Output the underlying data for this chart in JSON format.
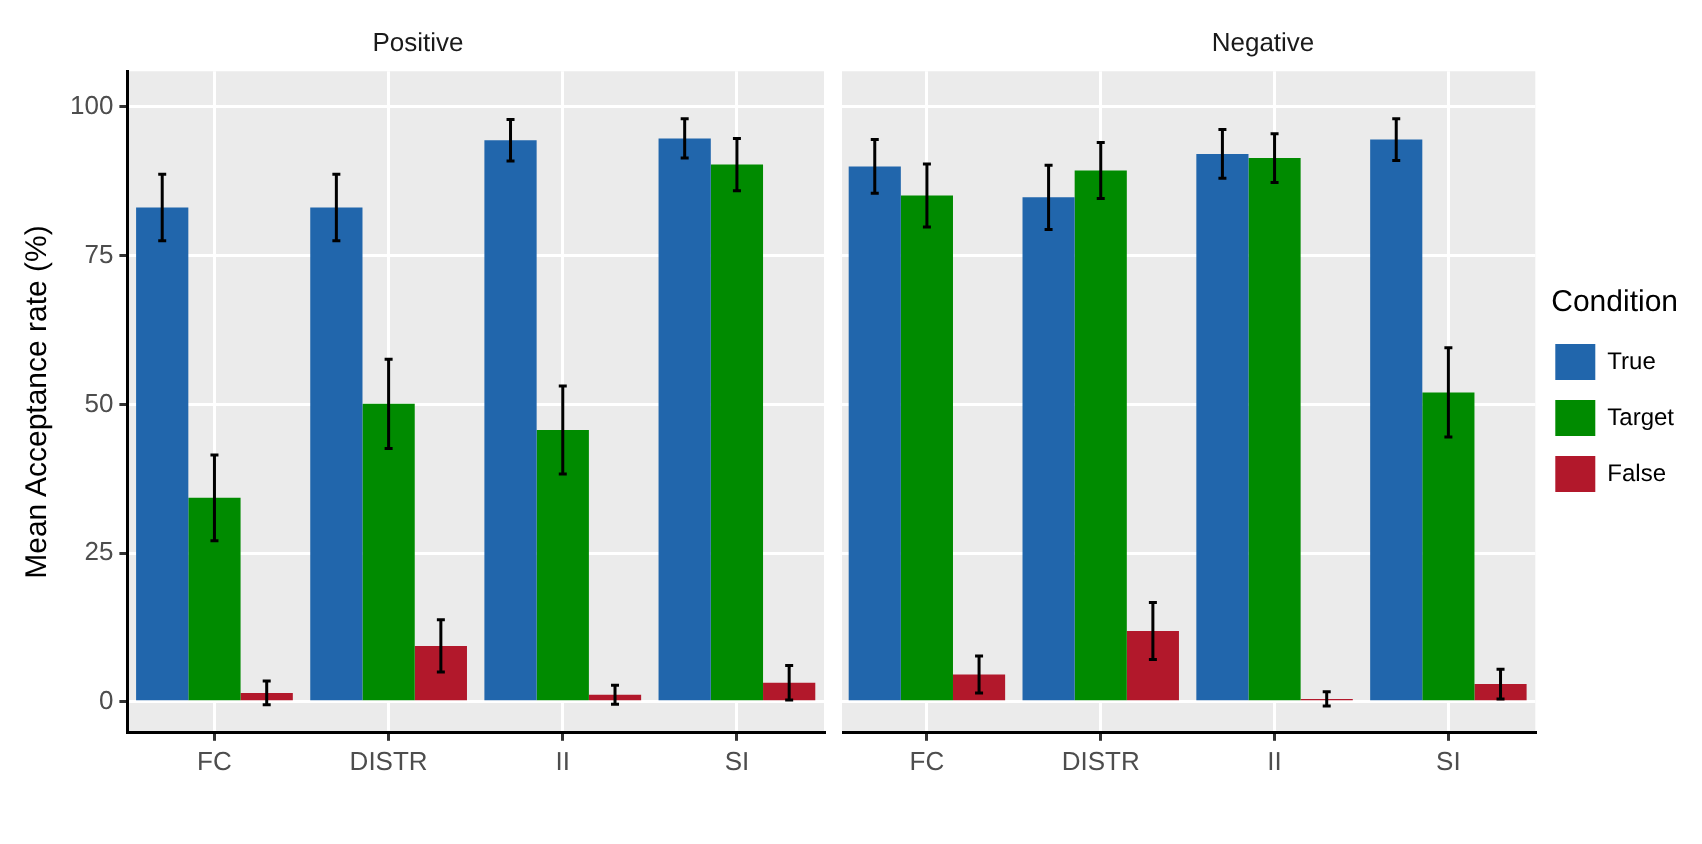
{
  "chart_data": [
    {
      "type": "bar",
      "title": "Positive",
      "ylabel": "Mean Acceptance rate (%)",
      "categories": [
        "FC",
        "DISTR",
        "II",
        "SI"
      ],
      "series": [
        {
          "color": "#2166ac",
          "values": [
            83.1,
            83.1,
            94.4,
            94.7
          ],
          "errors": [
            5.6,
            5.6,
            3.5,
            3.3
          ]
        },
        {
          "color": "#008b00",
          "values": [
            34.3,
            50.1,
            45.7,
            90.3
          ],
          "errors": [
            7.2,
            7.5,
            7.4,
            4.4
          ]
        },
        {
          "color": "#b2182b",
          "values": [
            1.5,
            9.4,
            1.2,
            3.2
          ],
          "errors": [
            2,
            4.4,
            1.6,
            2.9
          ]
        }
      ],
      "ylim": [
        -5.2,
        106
      ],
      "yticks": [
        0,
        25,
        50,
        75,
        100
      ],
      "grid": true,
      "legend": false
    },
    {
      "type": "bar",
      "title": "Negative",
      "categories": [
        "FC",
        "DISTR",
        "II",
        "SI"
      ],
      "series": [
        {
          "name": "True",
          "color": "#2166ac",
          "values": [
            90.0,
            84.8,
            92.1,
            94.5
          ],
          "errors": [
            4.5,
            5.4,
            4.1,
            3.5
          ]
        },
        {
          "name": "Target",
          "color": "#008b00",
          "values": [
            85.1,
            89.3,
            91.4,
            52.0
          ],
          "errors": [
            5.3,
            4.7,
            4.1,
            7.5
          ]
        },
        {
          "name": "False",
          "color": "#b2182b",
          "values": [
            4.6,
            11.9,
            0.5,
            3.0
          ],
          "errors": [
            3.1,
            4.8,
            1.2,
            2.5
          ]
        }
      ],
      "ylim": [
        -5.2,
        106
      ],
      "yticks": [
        0,
        25,
        50,
        75,
        100
      ],
      "grid": true,
      "legend": "right",
      "legend_title": "Condition",
      "tick_labels": "x"
    }
  ]
}
